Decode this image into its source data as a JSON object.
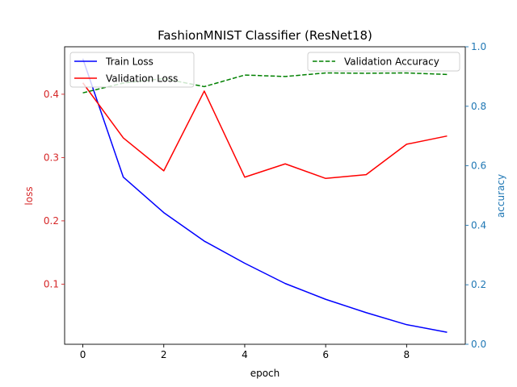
{
  "chart_data": {
    "type": "line",
    "title": "FashionMNIST Classifier (ResNet18)",
    "xlabel": "epoch",
    "ylabel_left": "loss",
    "ylabel_right": "accuracy",
    "x": [
      0,
      1,
      2,
      3,
      4,
      5,
      6,
      7,
      8,
      9
    ],
    "xlim": [
      -0.45,
      9.45
    ],
    "ylim_left": [
      0.005,
      0.475
    ],
    "ylim_right": [
      0.0,
      1.0
    ],
    "xticks": [
      "0",
      "2",
      "4",
      "6",
      "8"
    ],
    "yticks_left": [
      "0.1",
      "0.2",
      "0.3",
      "0.4"
    ],
    "yticks_right": [
      "0.0",
      "0.2",
      "0.4",
      "0.6",
      "0.8",
      "1.0"
    ],
    "grid": false,
    "series": [
      {
        "name": "Train Loss",
        "axis": "left",
        "color": "#0000ff",
        "style": "solid",
        "values": [
          0.456,
          0.269,
          0.213,
          0.168,
          0.133,
          0.101,
          0.076,
          0.055,
          0.036,
          0.024
        ]
      },
      {
        "name": "Validation Loss",
        "axis": "left",
        "color": "#ff0000",
        "style": "solid",
        "values": [
          0.418,
          0.331,
          0.279,
          0.405,
          0.269,
          0.29,
          0.267,
          0.273,
          0.321,
          0.334
        ]
      },
      {
        "name": "Validation Accuracy",
        "axis": "right",
        "color": "#008000",
        "style": "dashed",
        "values": [
          0.845,
          0.878,
          0.893,
          0.866,
          0.905,
          0.9,
          0.912,
          0.911,
          0.912,
          0.907
        ]
      }
    ],
    "legend_left": [
      "Train Loss",
      "Validation Loss"
    ],
    "legend_right": [
      "Validation Accuracy"
    ],
    "colors": {
      "left_axis": "#d62728",
      "right_axis": "#1f77b4",
      "axis": "#000000"
    }
  }
}
